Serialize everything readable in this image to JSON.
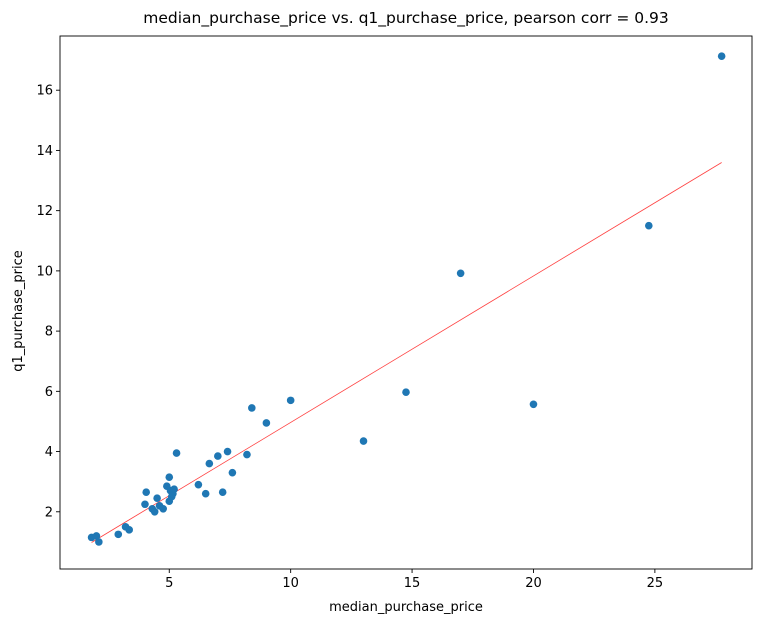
{
  "chart_data": {
    "type": "scatter",
    "title": "median_purchase_price vs. q1_purchase_price, pearson corr = 0.93",
    "xlabel": "median_purchase_price",
    "ylabel": "q1_purchase_price",
    "xlim": [
      0.5,
      29.0
    ],
    "ylim": [
      0.1,
      17.8
    ],
    "xticks": [
      5,
      10,
      15,
      20,
      25
    ],
    "yticks": [
      2,
      4,
      6,
      8,
      10,
      12,
      14,
      16
    ],
    "grid": false,
    "colors": {
      "points": "#1f77b4",
      "fit_line": "#ff0000"
    },
    "points": [
      {
        "x": 1.8,
        "y": 1.15
      },
      {
        "x": 2.0,
        "y": 1.2
      },
      {
        "x": 2.1,
        "y": 1.0
      },
      {
        "x": 2.9,
        "y": 1.25
      },
      {
        "x": 3.2,
        "y": 1.5
      },
      {
        "x": 3.35,
        "y": 1.4
      },
      {
        "x": 4.0,
        "y": 2.25
      },
      {
        "x": 4.05,
        "y": 2.65
      },
      {
        "x": 4.3,
        "y": 2.1
      },
      {
        "x": 4.4,
        "y": 2.0
      },
      {
        "x": 4.5,
        "y": 2.45
      },
      {
        "x": 4.6,
        "y": 2.2
      },
      {
        "x": 4.75,
        "y": 2.1
      },
      {
        "x": 4.9,
        "y": 2.85
      },
      {
        "x": 5.0,
        "y": 2.35
      },
      {
        "x": 5.0,
        "y": 3.15
      },
      {
        "x": 5.05,
        "y": 2.7
      },
      {
        "x": 5.1,
        "y": 2.5
      },
      {
        "x": 5.15,
        "y": 2.6
      },
      {
        "x": 5.2,
        "y": 2.75
      },
      {
        "x": 5.3,
        "y": 3.95
      },
      {
        "x": 6.2,
        "y": 2.9
      },
      {
        "x": 6.5,
        "y": 2.6
      },
      {
        "x": 6.65,
        "y": 3.6
      },
      {
        "x": 7.0,
        "y": 3.85
      },
      {
        "x": 7.2,
        "y": 2.65
      },
      {
        "x": 7.4,
        "y": 4.0
      },
      {
        "x": 7.6,
        "y": 3.3
      },
      {
        "x": 8.2,
        "y": 3.9
      },
      {
        "x": 8.4,
        "y": 5.45
      },
      {
        "x": 9.0,
        "y": 4.95
      },
      {
        "x": 10.0,
        "y": 5.7
      },
      {
        "x": 13.0,
        "y": 4.35
      },
      {
        "x": 14.75,
        "y": 5.97
      },
      {
        "x": 17.0,
        "y": 9.92
      },
      {
        "x": 20.0,
        "y": 5.57
      },
      {
        "x": 24.75,
        "y": 11.5
      },
      {
        "x": 27.75,
        "y": 17.13
      }
    ],
    "fit_line": {
      "x": [
        1.8,
        27.75
      ],
      "y": [
        0.98,
        13.6
      ]
    }
  }
}
